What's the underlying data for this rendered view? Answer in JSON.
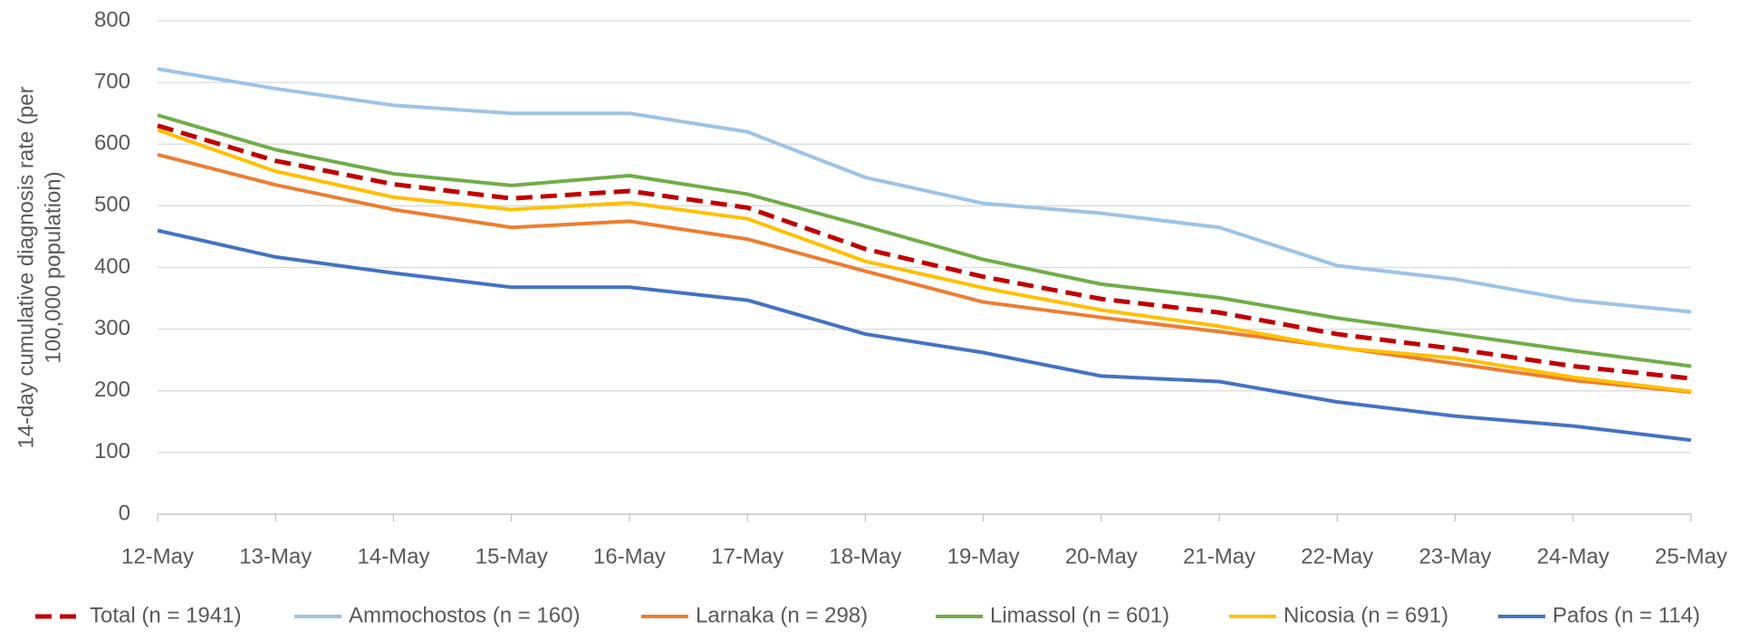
{
  "chart_data": {
    "type": "line",
    "y_label": [
      "14-day cumulative diagnosis rate (per",
      "100,000 population)"
    ],
    "categories": [
      "12-May",
      "13-May",
      "14-May",
      "15-May",
      "16-May",
      "17-May",
      "18-May",
      "19-May",
      "20-May",
      "21-May",
      "22-May",
      "23-May",
      "24-May",
      "25-May"
    ],
    "series": [
      {
        "name": "Total (n = 1941)",
        "color": "#c00000",
        "dashed": true,
        "values": [
          630,
          573,
          535,
          512,
          524,
          497,
          430,
          385,
          349,
          327,
          292,
          268,
          240,
          220
        ]
      },
      {
        "name": "Ammochostos (n = 160)",
        "color": "#9dc3e6",
        "values": [
          722,
          690,
          663,
          650,
          650,
          620,
          546,
          504,
          488,
          465,
          403,
          381,
          347,
          328
        ]
      },
      {
        "name": "Larnaka (n = 298)",
        "color": "#ed7d31",
        "values": [
          583,
          534,
          494,
          465,
          475,
          446,
          394,
          344,
          319,
          296,
          271,
          244,
          217,
          198
        ]
      },
      {
        "name": "Limassol (n = 601)",
        "color": "#70ad47",
        "values": [
          647,
          591,
          552,
          533,
          549,
          519,
          467,
          413,
          373,
          351,
          318,
          292,
          265,
          240
        ]
      },
      {
        "name": "Nicosia (n = 691)",
        "color": "#ffc000",
        "values": [
          623,
          556,
          514,
          494,
          505,
          479,
          410,
          367,
          331,
          305,
          270,
          253,
          222,
          199
        ]
      },
      {
        "name": "Pafos (n = 114)",
        "color": "#4472c4",
        "values": [
          460,
          417,
          391,
          368,
          368,
          347,
          292,
          262,
          224,
          215,
          182,
          159,
          143,
          120
        ]
      }
    ],
    "ylim": [
      0,
      800
    ],
    "yticks": [
      0,
      100,
      200,
      300,
      400,
      500,
      600,
      700,
      800
    ],
    "grid": true,
    "legend": "bottom"
  }
}
